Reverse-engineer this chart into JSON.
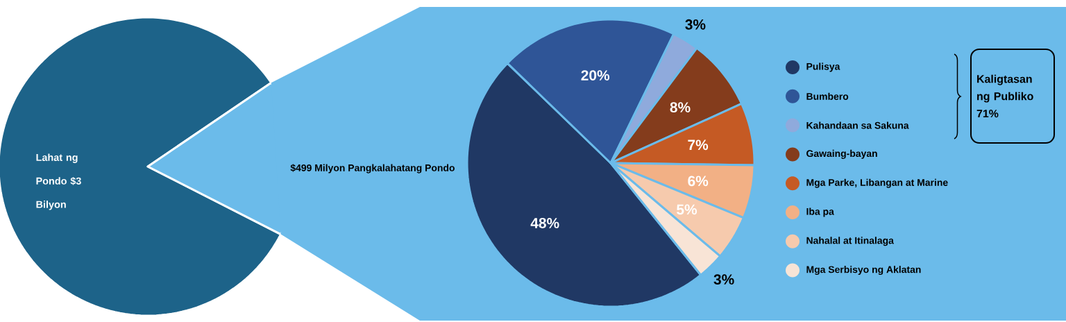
{
  "chart_data": [
    {
      "type": "pie",
      "categories": [
        null,
        null
      ],
      "values": [
        83,
        17
      ],
      "colors": [
        "#1d6389",
        "#6bbbea"
      ],
      "annotations": [
        "Lahat ng Pondo $3 Bilyon"
      ]
    },
    {
      "type": "pie",
      "title": "$499 Milyon Pangkalahatang Pondo",
      "categories": [
        "Pulisya",
        "Bumbero",
        "Kahandaan sa Sakuna",
        "Gawaing-bayan",
        "Mga Parke, Libangan at Marine",
        "Iba pa",
        "Nahalal at Itinalaga",
        "Mga Serbisyo ng Aklatan"
      ],
      "values": [
        48,
        20,
        3,
        8,
        7,
        6,
        5,
        3
      ],
      "colors": [
        "#203864",
        "#2f5597",
        "#8faadc",
        "#843c1c",
        "#c55a24",
        "#f2b085",
        "#f6caad",
        "#f8e4d6"
      ],
      "value_labels": [
        "48%",
        "20%",
        "3%",
        "8%",
        "7%",
        "6%",
        "5%",
        "3%"
      ],
      "legend": "right",
      "annotations": [
        "Kaligtasan ng Publiko 71%"
      ]
    }
  ]
}
